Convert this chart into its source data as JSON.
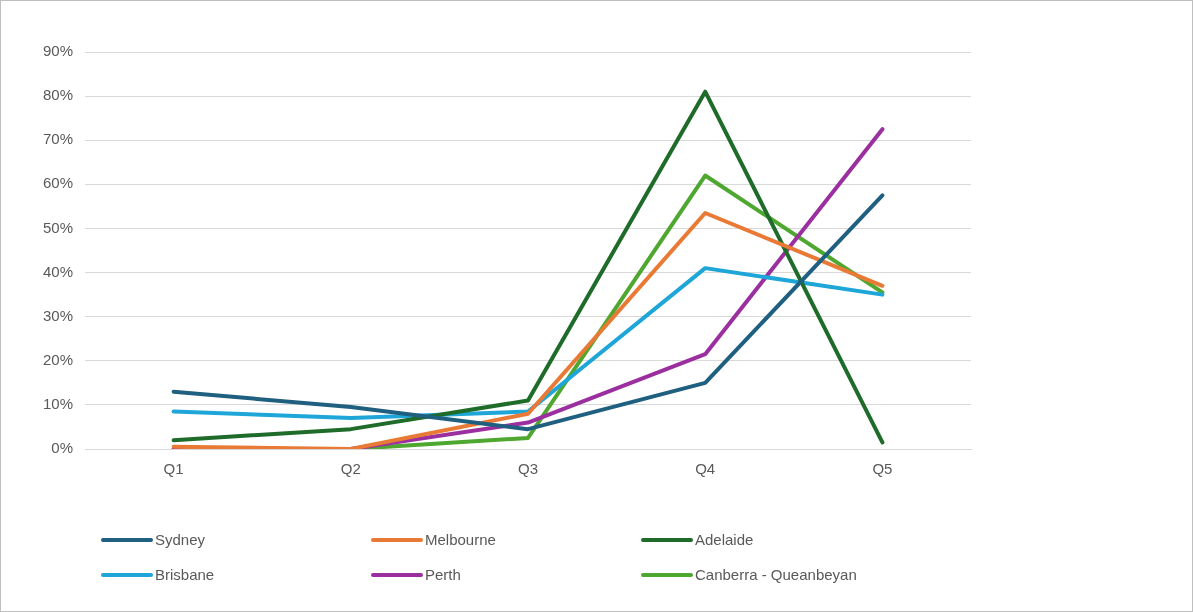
{
  "chart_data": {
    "type": "line",
    "categories": [
      "Q1",
      "Q2",
      "Q3",
      "Q4",
      "Q5"
    ],
    "series": [
      {
        "name": "Sydney",
        "color": "#1f5f7f",
        "values": [
          13,
          9.5,
          4.5,
          15,
          57.5
        ]
      },
      {
        "name": "Melbourne",
        "color": "#e97a35",
        "values": [
          0.5,
          0,
          8,
          53.5,
          37
        ]
      },
      {
        "name": "Adelaide",
        "color": "#1e6b2a",
        "values": [
          2,
          4.5,
          11,
          81,
          1.5
        ]
      },
      {
        "name": "Brisbane",
        "color": "#1ea6d8",
        "values": [
          8.5,
          7,
          8.5,
          41,
          35
        ]
      },
      {
        "name": "Perth",
        "color": "#9b2f9f",
        "values": [
          0,
          0,
          6,
          21.5,
          72.5
        ]
      },
      {
        "name": "Canberra - Queanbeyan",
        "color": "#4ea72e",
        "values": [
          0,
          0,
          2.5,
          62,
          35.5
        ]
      }
    ],
    "ylim": [
      0,
      90
    ],
    "yticks": [
      {
        "value": 0,
        "label": "0%"
      },
      {
        "value": 10,
        "label": "10%"
      },
      {
        "value": 20,
        "label": "20%"
      },
      {
        "value": 30,
        "label": "30%"
      },
      {
        "value": 40,
        "label": "40%"
      },
      {
        "value": 50,
        "label": "50%"
      },
      {
        "value": 60,
        "label": "60%"
      },
      {
        "value": 70,
        "label": "70%"
      },
      {
        "value": 80,
        "label": "80%"
      },
      {
        "value": 90,
        "label": "90%"
      }
    ],
    "grid": "y",
    "legend": "bottom",
    "marker": "none",
    "line_style": "solid"
  }
}
